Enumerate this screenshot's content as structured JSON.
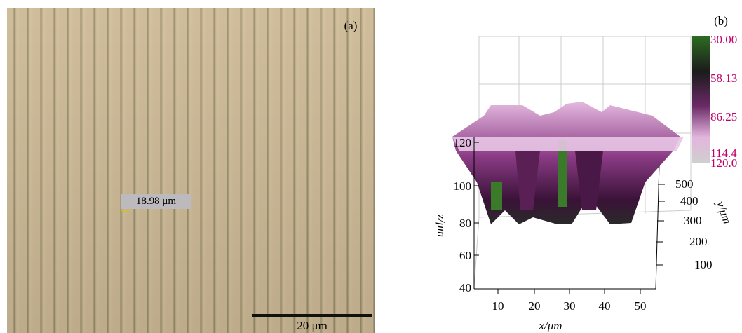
{
  "panel_a": {
    "label": "(a)",
    "measurement": "18.98 μm",
    "scale_bar": "20 μm"
  },
  "panel_b": {
    "label": "(b)",
    "colorbar": [
      "30.00",
      "58.13",
      "86.25",
      "114.4",
      "120.0"
    ],
    "z_ticks": [
      "120",
      "100",
      "80",
      "60",
      "40"
    ],
    "x_ticks": [
      "10",
      "20",
      "30",
      "40",
      "50"
    ],
    "y_ticks": [
      "500",
      "400",
      "300",
      "200",
      "100"
    ],
    "z_label": "z/μm",
    "x_label": "x/μm",
    "y_label": "y/μm"
  }
}
